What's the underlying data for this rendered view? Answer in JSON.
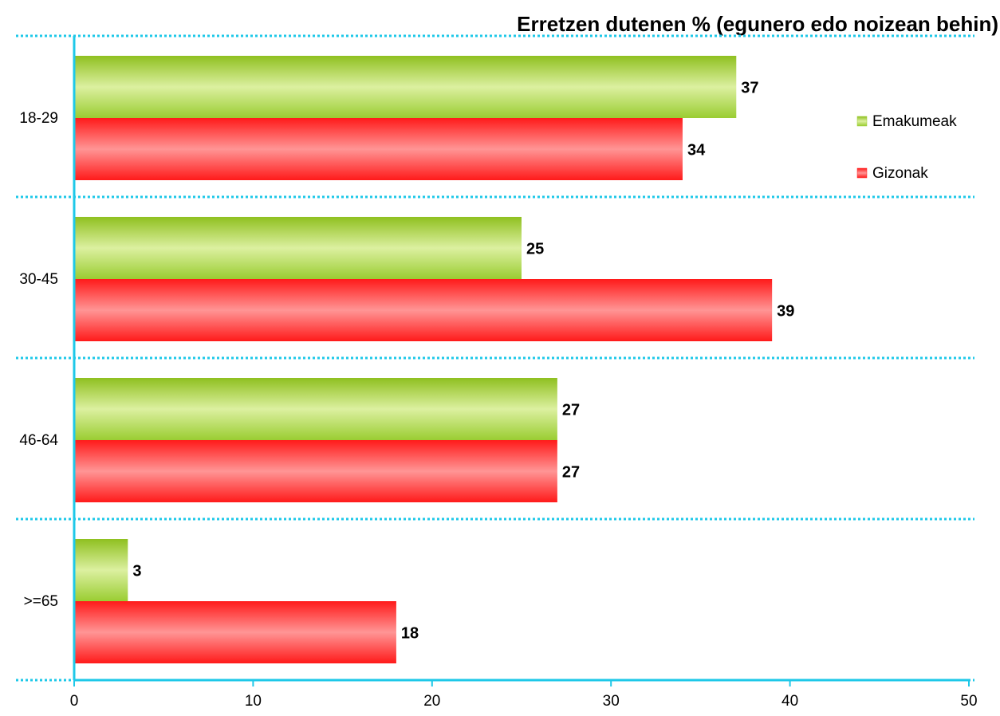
{
  "chart_data": {
    "type": "hbar",
    "title": "Erretzen dutenen % (egunero edo noizean behin)",
    "categories": [
      "18-29",
      "30-45",
      "46-64",
      ">=65"
    ],
    "series": [
      {
        "name": "Emakumeak",
        "color": "#9acd32",
        "values": [
          37,
          25,
          27,
          3
        ]
      },
      {
        "name": "Gizonak",
        "color": "#ff2020",
        "values": [
          34,
          39,
          27,
          18
        ]
      }
    ],
    "xlim": [
      0,
      50
    ],
    "xticks": [
      0,
      10,
      20,
      30,
      40,
      50
    ],
    "legend": "right"
  }
}
